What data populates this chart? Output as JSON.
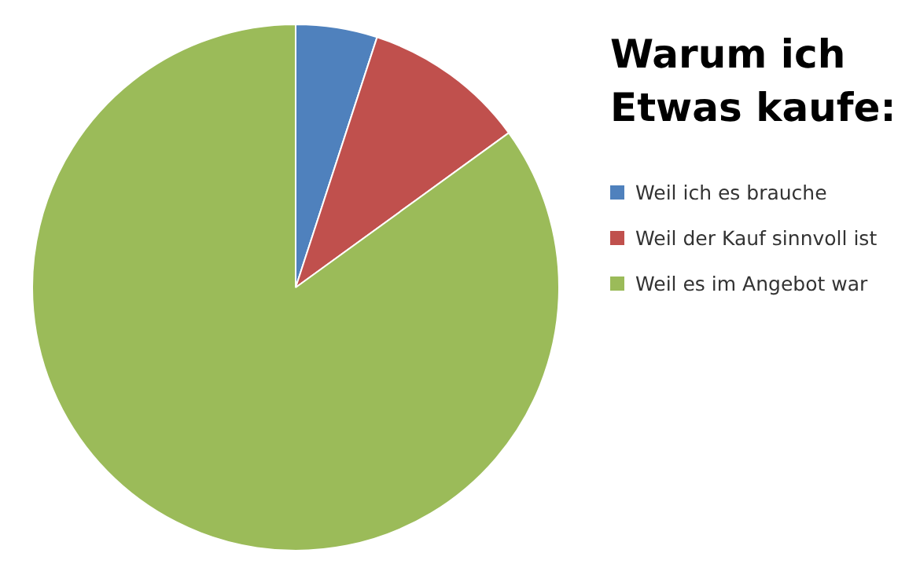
{
  "chart_data": {
    "type": "pie",
    "title": "Warum ich Etwas kaufe:",
    "categories": [
      "Weil ich es brauche",
      "Weil der Kauf sinnvoll ist",
      "Weil es im Angebot war"
    ],
    "values": [
      5,
      10,
      85
    ],
    "colors": [
      "#4f81bd",
      "#c0504d",
      "#9bbb59"
    ],
    "legend": "right"
  }
}
